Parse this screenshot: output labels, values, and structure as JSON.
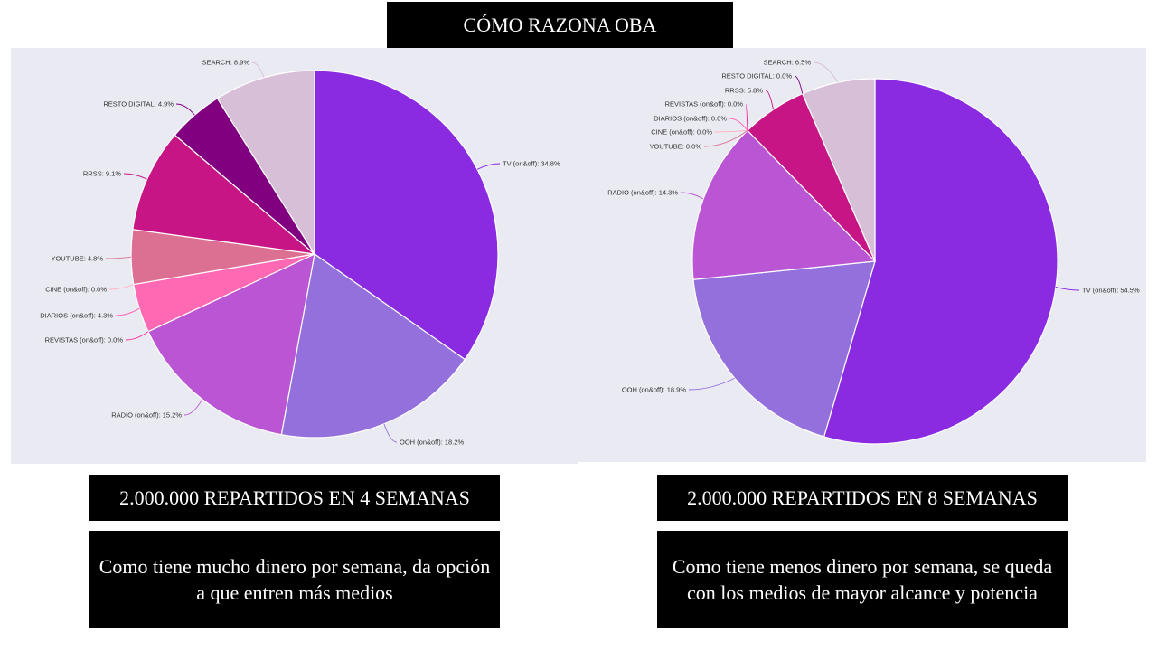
{
  "title": "CÓMO RAZONA OBA",
  "left": {
    "caption": "2.000.000  REPARTIDOS EN 4 SEMANAS",
    "note": "Como tiene mucho dinero por semana, da opción a que entren más medios"
  },
  "right": {
    "caption": "2.000.000  REPARTIDOS EN 8 SEMANAS",
    "note": "Como tiene menos dinero por semana, se queda con los medios de mayor alcance y potencia"
  },
  "chart_data": [
    {
      "type": "pie",
      "title": "",
      "slices": [
        {
          "label": "TV (on&off)",
          "value": 34.8,
          "display": "TV (on&off): 34.8%",
          "color": "#8a2be2"
        },
        {
          "label": "OOH (on&off)",
          "value": 18.2,
          "display": "OOH (on&off): 18.2%",
          "color": "#9370db"
        },
        {
          "label": "RADIO (on&off)",
          "value": 15.2,
          "display": "RADIO (on&off): 15.2%",
          "color": "#ba55d3"
        },
        {
          "label": "REVISTAS (on&off)",
          "value": 0.0,
          "display": "REVISTAS (on&off): 0.0%",
          "color": "#ff1493"
        },
        {
          "label": "DIARIOS (on&off)",
          "value": 4.3,
          "display": "DIARIOS (on&off): 4.3%",
          "color": "#ff69b4"
        },
        {
          "label": "CINE (on&off)",
          "value": 0.0,
          "display": "CINE (on&off): 0.0%",
          "color": "#ffb6c1"
        },
        {
          "label": "YOUTUBE",
          "value": 4.8,
          "display": "YOUTUBE: 4.8%",
          "color": "#db7093"
        },
        {
          "label": "RRSS",
          "value": 9.1,
          "display": "RRSS: 9.1%",
          "color": "#c71585"
        },
        {
          "label": "RESTO DIGITAL",
          "value": 4.9,
          "display": "RESTO DIGITAL: 4.9%",
          "color": "#800080"
        },
        {
          "label": "SEARCH",
          "value": 8.9,
          "display": "SEARCH: 8.9%",
          "color": "#d8bfd8"
        }
      ]
    },
    {
      "type": "pie",
      "title": "",
      "slices": [
        {
          "label": "TV (on&off)",
          "value": 54.5,
          "display": "TV (on&off): 54.5%",
          "color": "#8a2be2"
        },
        {
          "label": "OOH (on&off)",
          "value": 18.9,
          "display": "OOH (on&off): 18.9%",
          "color": "#9370db"
        },
        {
          "label": "RADIO (on&off)",
          "value": 14.3,
          "display": "RADIO (on&off): 14.3%",
          "color": "#ba55d3"
        },
        {
          "label": "YOUTUBE",
          "value": 0.0,
          "display": "YOUTUBE: 0.0%",
          "color": "#db7093"
        },
        {
          "label": "CINE (on&off)",
          "value": 0.0,
          "display": "CINE (on&off): 0.0%",
          "color": "#ffb6c1"
        },
        {
          "label": "DIARIOS (on&off)",
          "value": 0.0,
          "display": "DIARIOS (on&off): 0.0%",
          "color": "#ff69b4"
        },
        {
          "label": "REVISTAS (on&off)",
          "value": 0.0,
          "display": "REVISTAS (on&off): 0.0%",
          "color": "#ff1493"
        },
        {
          "label": "RRSS",
          "value": 5.8,
          "display": "RRSS: 5.8%",
          "color": "#c71585"
        },
        {
          "label": "RESTO DIGITAL",
          "value": 0.0,
          "display": "RESTO DIGITAL: 0.0%",
          "color": "#800080"
        },
        {
          "label": "SEARCH",
          "value": 6.5,
          "display": "SEARCH: 6.5%",
          "color": "#d8bfd8"
        }
      ]
    }
  ]
}
